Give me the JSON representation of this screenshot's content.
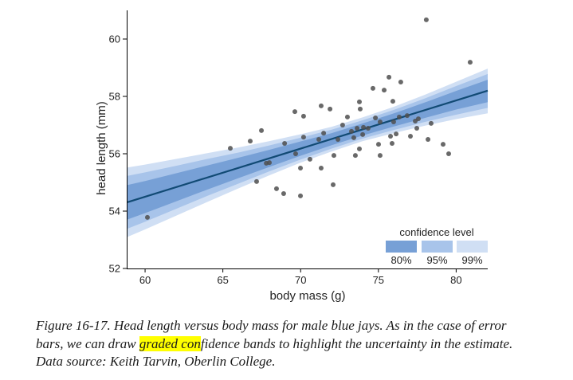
{
  "chart_data": {
    "type": "scatter",
    "xlabel": "body mass (g)",
    "ylabel": "head length (mm)",
    "xlim": [
      58.87,
      82.03
    ],
    "ylim": [
      52,
      61
    ],
    "xticks": [
      60,
      65,
      70,
      75,
      80
    ],
    "yticks": [
      52,
      54,
      56,
      58,
      60
    ],
    "grid": false,
    "points": {
      "x": [
        60.15,
        65.48,
        66.76,
        67.48,
        67.17,
        67.79,
        67.99,
        68.45,
        68.91,
        68.97,
        69.63,
        69.68,
        69.99,
        69.99,
        70.19,
        70.19,
        70.6,
        71.17,
        71.32,
        71.32,
        71.48,
        71.89,
        72.09,
        72.14,
        72.4,
        72.7,
        73.01,
        73.27,
        73.42,
        73.52,
        73.63,
        73.78,
        73.78,
        73.83,
        73.99,
        74.04,
        74.34,
        74.65,
        74.81,
        75.01,
        75.11,
        75.11,
        75.37,
        75.68,
        75.78,
        75.88,
        75.93,
        75.98,
        76.14,
        76.34,
        76.44,
        76.85,
        77.06,
        77.37,
        77.57,
        77.47,
        78.08,
        78.19,
        78.39,
        79.16,
        79.52,
        80.9
      ],
      "y": [
        53.78,
        56.19,
        56.44,
        56.81,
        55.03,
        55.67,
        55.69,
        54.78,
        54.61,
        56.36,
        57.47,
        56.0,
        55.5,
        54.53,
        57.31,
        56.58,
        55.81,
        56.5,
        57.67,
        55.5,
        56.72,
        57.56,
        54.92,
        55.94,
        56.5,
        57.0,
        57.28,
        56.78,
        56.56,
        55.94,
        56.89,
        56.17,
        57.81,
        57.56,
        56.67,
        56.92,
        56.89,
        58.28,
        57.25,
        56.33,
        55.94,
        57.11,
        58.22,
        58.67,
        56.61,
        56.36,
        57.83,
        57.11,
        56.69,
        57.28,
        58.5,
        57.33,
        56.61,
        57.14,
        57.22,
        56.89,
        60.67,
        56.5,
        57.06,
        56.33,
        56.0,
        59.19
      ],
      "color": "#4f4f4f"
    },
    "fit_line": {
      "x": [
        58.87,
        82.03
      ],
      "y": [
        54.31,
        58.2
      ],
      "color": "#114a74"
    },
    "confidence_bands": {
      "x": [
        58.87,
        60,
        62,
        64,
        66,
        68,
        70,
        72,
        74,
        76,
        78,
        80,
        82.03
      ],
      "levels": [
        {
          "label": "80%",
          "color": "#77a0d6",
          "lower": [
            53.71,
            53.93,
            54.34,
            54.75,
            55.15,
            55.54,
            55.93,
            56.3,
            56.64,
            56.95,
            57.25,
            57.54,
            57.8
          ],
          "upper": [
            54.91,
            55.05,
            55.32,
            55.59,
            55.86,
            56.14,
            56.43,
            56.72,
            57.06,
            57.41,
            57.79,
            58.19,
            58.58
          ]
        },
        {
          "label": "95%",
          "color": "#a8c4ea",
          "lower": [
            53.39,
            53.63,
            54.08,
            54.53,
            54.96,
            55.39,
            55.8,
            56.18,
            56.53,
            56.83,
            57.11,
            57.36,
            57.6
          ],
          "upper": [
            55.23,
            55.35,
            55.58,
            55.82,
            56.04,
            56.29,
            56.56,
            56.84,
            57.17,
            57.53,
            57.93,
            58.36,
            58.78
          ]
        },
        {
          "label": "99%",
          "color": "#d0dff4",
          "lower": [
            53.1,
            53.36,
            53.84,
            54.32,
            54.79,
            55.25,
            55.69,
            56.08,
            56.44,
            56.72,
            56.98,
            57.21,
            57.41
          ],
          "upper": [
            55.52,
            55.62,
            55.82,
            56.02,
            56.22,
            56.44,
            56.68,
            56.94,
            57.27,
            57.64,
            58.06,
            58.51,
            58.97
          ]
        }
      ]
    },
    "legend": {
      "title": "confidence level",
      "position": "bottom-right"
    }
  },
  "caption": {
    "line1": "Figure 16-17. Head length versus body mass for male blue jays. As in the case of error",
    "line2_start": "bars, we can draw ",
    "line2_highlight": "graded con",
    "line2_end": "fidence bands to highlight the uncertainty in the estimate.",
    "line3": "Data source: Keith Tarvin, Oberlin College.",
    "highlight_color": "#ffff00"
  }
}
